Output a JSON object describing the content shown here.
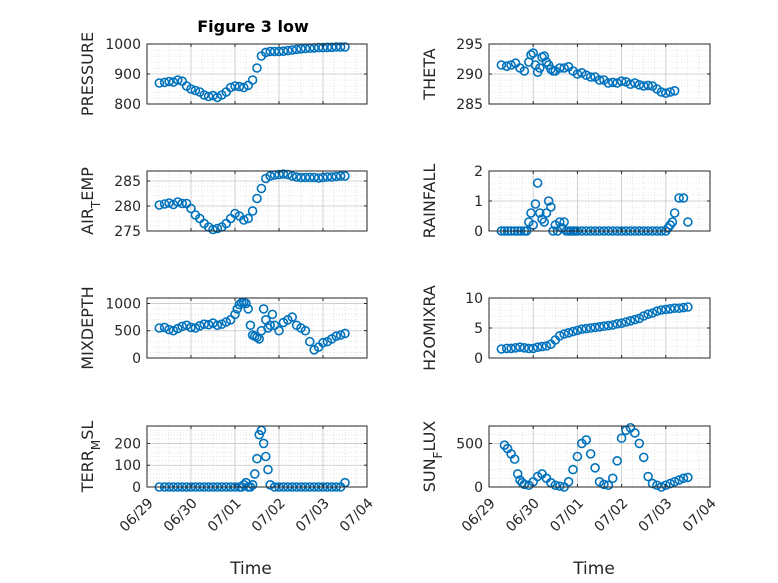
{
  "chart_data": [
    {
      "type": "scatter",
      "panel": "pressure",
      "title": "Figure 3 low",
      "ylabel": "PRESSURE",
      "xlabel": "",
      "ylim": [
        800,
        1000
      ],
      "yticks": [
        "800",
        "900",
        "1000"
      ],
      "xlim": [
        "06/29",
        "07/04"
      ],
      "grid": true,
      "marker": "circle",
      "color": "#0072BD",
      "x": [
        0.28,
        0.4,
        0.5,
        0.6,
        0.7,
        0.8,
        0.9,
        1.0,
        1.1,
        1.2,
        1.3,
        1.4,
        1.5,
        1.6,
        1.7,
        1.8,
        1.9,
        2.0,
        2.1,
        2.2,
        2.3,
        2.4,
        2.5,
        2.6,
        2.7,
        2.8,
        2.9,
        3.0,
        3.1,
        3.2,
        3.3,
        3.4,
        3.5,
        3.6,
        3.7,
        3.8,
        3.9,
        4.0,
        4.1,
        4.2,
        4.3,
        4.4,
        4.5
      ],
      "values": [
        870,
        872,
        875,
        873,
        880,
        876,
        860,
        850,
        845,
        840,
        830,
        825,
        828,
        822,
        830,
        840,
        855,
        860,
        858,
        855,
        862,
        880,
        920,
        960,
        972,
        975,
        975,
        975,
        976,
        978,
        980,
        982,
        984,
        985,
        986,
        987,
        988,
        988,
        989,
        989,
        990,
        990,
        990
      ]
    },
    {
      "type": "scatter",
      "panel": "theta",
      "ylabel": "THETA",
      "ylim": [
        285,
        295
      ],
      "yticks": [
        "285",
        "290",
        "295"
      ],
      "xlim": [
        "06/29",
        "07/04"
      ],
      "grid": true,
      "marker": "circle",
      "color": "#0072BD",
      "x": [
        0.28,
        0.4,
        0.5,
        0.6,
        0.7,
        0.8,
        0.9,
        0.95,
        1.0,
        1.05,
        1.1,
        1.15,
        1.2,
        1.25,
        1.3,
        1.35,
        1.4,
        1.45,
        1.5,
        1.6,
        1.7,
        1.8,
        1.9,
        2.0,
        2.1,
        2.2,
        2.3,
        2.4,
        2.5,
        2.6,
        2.7,
        2.8,
        2.9,
        3.0,
        3.1,
        3.2,
        3.3,
        3.4,
        3.5,
        3.6,
        3.7,
        3.8,
        3.9,
        4.0,
        4.1,
        4.2
      ],
      "values": [
        291.5,
        291.3,
        291.5,
        291.8,
        291.0,
        290.5,
        292.0,
        293.2,
        293.5,
        291.5,
        290.3,
        291.0,
        292.8,
        293.0,
        292.0,
        291.5,
        290.8,
        290.5,
        290.5,
        291.0,
        291.0,
        291.2,
        290.5,
        290.0,
        290.2,
        289.8,
        289.5,
        289.5,
        289.0,
        289.0,
        288.5,
        288.6,
        288.5,
        288.8,
        288.7,
        288.3,
        288.5,
        288.2,
        288.0,
        288.1,
        288.0,
        287.5,
        287.0,
        286.8,
        287.0,
        287.2
      ]
    },
    {
      "type": "scatter",
      "panel": "air_temp",
      "ylabel": "AIR_TEMP",
      "ylim": [
        275,
        287
      ],
      "yticks": [
        "275",
        "280",
        "285"
      ],
      "xlim": [
        "06/29",
        "07/04"
      ],
      "grid": true,
      "marker": "circle",
      "color": "#0072BD",
      "x": [
        0.28,
        0.4,
        0.5,
        0.6,
        0.7,
        0.8,
        0.9,
        1.0,
        1.1,
        1.2,
        1.3,
        1.4,
        1.5,
        1.6,
        1.7,
        1.8,
        1.9,
        2.0,
        2.1,
        2.2,
        2.3,
        2.4,
        2.5,
        2.6,
        2.7,
        2.8,
        2.9,
        3.0,
        3.1,
        3.2,
        3.3,
        3.4,
        3.5,
        3.6,
        3.7,
        3.8,
        3.9,
        4.0,
        4.1,
        4.2,
        4.3,
        4.4,
        4.5
      ],
      "values": [
        280.2,
        280.4,
        280.6,
        280.3,
        280.8,
        280.5,
        280.5,
        279.5,
        278.2,
        277.5,
        276.5,
        275.8,
        275.3,
        275.5,
        275.8,
        276.5,
        277.5,
        278.5,
        278.0,
        277.2,
        277.5,
        279.0,
        281.5,
        283.5,
        285.5,
        286.0,
        286.2,
        286.3,
        286.4,
        286.3,
        286.0,
        285.8,
        285.7,
        285.7,
        285.7,
        285.7,
        285.6,
        285.7,
        285.8,
        285.8,
        285.9,
        286.0,
        286.0
      ]
    },
    {
      "type": "scatter",
      "panel": "rainfall",
      "ylabel": "RAINFALL",
      "ylim": [
        0,
        2
      ],
      "yticks": [
        "0",
        "1",
        "2"
      ],
      "xlim": [
        "06/29",
        "07/04"
      ],
      "grid": true,
      "marker": "circle",
      "color": "#0072BD",
      "x": [
        0.28,
        0.35,
        0.42,
        0.5,
        0.58,
        0.65,
        0.72,
        0.8,
        0.85,
        0.9,
        0.95,
        1.0,
        1.05,
        1.1,
        1.15,
        1.2,
        1.25,
        1.3,
        1.35,
        1.4,
        1.45,
        1.5,
        1.55,
        1.6,
        1.65,
        1.7,
        1.75,
        1.8,
        1.85,
        1.9,
        1.95,
        2.0,
        2.1,
        2.2,
        2.3,
        2.4,
        2.5,
        2.6,
        2.7,
        2.8,
        2.9,
        3.0,
        3.1,
        3.2,
        3.3,
        3.4,
        3.5,
        3.6,
        3.7,
        3.8,
        3.9,
        4.0,
        4.05,
        4.1,
        4.15,
        4.2,
        4.3,
        4.4,
        4.5
      ],
      "values": [
        0,
        0,
        0,
        0,
        0,
        0,
        0,
        0,
        0,
        0.3,
        0.6,
        0.2,
        0.9,
        1.6,
        0.6,
        0.4,
        0.3,
        0.6,
        1.0,
        0.8,
        0,
        0.2,
        0,
        0.3,
        0.1,
        0.3,
        0,
        0,
        0,
        0,
        0,
        0,
        0,
        0,
        0,
        0,
        0,
        0,
        0,
        0,
        0,
        0,
        0,
        0,
        0,
        0,
        0,
        0,
        0,
        0,
        0,
        0,
        0.1,
        0.2,
        0.3,
        0.6,
        1.1,
        1.1,
        0.3
      ]
    },
    {
      "type": "scatter",
      "panel": "mixdepth",
      "ylabel": "MIXDEPTH",
      "ylim": [
        0,
        1100
      ],
      "yticks": [
        "0",
        "500",
        "1000"
      ],
      "xlim": [
        "06/29",
        "07/04"
      ],
      "grid": true,
      "marker": "circle",
      "color": "#0072BD",
      "x": [
        0.28,
        0.4,
        0.5,
        0.6,
        0.7,
        0.8,
        0.9,
        1.0,
        1.1,
        1.2,
        1.3,
        1.4,
        1.5,
        1.6,
        1.7,
        1.8,
        1.9,
        2.0,
        2.05,
        2.1,
        2.15,
        2.2,
        2.25,
        2.3,
        2.35,
        2.4,
        2.45,
        2.5,
        2.55,
        2.6,
        2.65,
        2.7,
        2.75,
        2.8,
        2.85,
        2.9,
        3.0,
        3.1,
        3.2,
        3.3,
        3.4,
        3.5,
        3.6,
        3.7,
        3.8,
        3.9,
        4.0,
        4.1,
        4.2,
        4.3,
        4.4,
        4.5
      ],
      "values": [
        550,
        560,
        520,
        500,
        540,
        580,
        600,
        560,
        550,
        590,
        620,
        610,
        640,
        600,
        620,
        660,
        700,
        800,
        900,
        980,
        1010,
        1020,
        1000,
        900,
        600,
        420,
        400,
        380,
        350,
        500,
        900,
        700,
        550,
        600,
        800,
        600,
        500,
        650,
        700,
        750,
        600,
        550,
        500,
        300,
        150,
        200,
        280,
        300,
        350,
        400,
        420,
        450
      ]
    },
    {
      "type": "scatter",
      "panel": "h2omixra",
      "ylabel": "H2OMIXRA",
      "ylim": [
        0,
        10
      ],
      "yticks": [
        "0",
        "5",
        "10"
      ],
      "xlim": [
        "06/29",
        "07/04"
      ],
      "grid": true,
      "marker": "circle",
      "color": "#0072BD",
      "x": [
        0.28,
        0.4,
        0.5,
        0.6,
        0.7,
        0.8,
        0.9,
        1.0,
        1.1,
        1.2,
        1.3,
        1.4,
        1.5,
        1.6,
        1.7,
        1.8,
        1.9,
        2.0,
        2.1,
        2.2,
        2.3,
        2.4,
        2.5,
        2.6,
        2.7,
        2.8,
        2.9,
        3.0,
        3.1,
        3.2,
        3.3,
        3.4,
        3.5,
        3.6,
        3.7,
        3.8,
        3.9,
        4.0,
        4.1,
        4.2,
        4.3,
        4.4,
        4.5
      ],
      "values": [
        1.5,
        1.6,
        1.6,
        1.7,
        1.8,
        1.7,
        1.6,
        1.6,
        1.8,
        1.9,
        2.0,
        2.3,
        3.0,
        3.7,
        4.0,
        4.2,
        4.4,
        4.6,
        4.8,
        4.9,
        5.0,
        5.1,
        5.2,
        5.3,
        5.4,
        5.5,
        5.7,
        5.8,
        6.0,
        6.2,
        6.4,
        6.6,
        7.0,
        7.3,
        7.5,
        7.8,
        8.0,
        8.1,
        8.2,
        8.3,
        8.3,
        8.4,
        8.5
      ]
    },
    {
      "type": "scatter",
      "panel": "terr_msl",
      "ylabel": "TERR_MSL",
      "ylim": [
        0,
        280
      ],
      "yticks": [
        "0",
        "100",
        "200"
      ],
      "xlim": [
        "06/29",
        "07/04"
      ],
      "xticks": [
        "06/29",
        "06/30",
        "07/01",
        "07/02",
        "07/03",
        "07/04"
      ],
      "xlabel": "Time",
      "grid": true,
      "marker": "circle",
      "color": "#0072BD",
      "x": [
        0.28,
        0.4,
        0.5,
        0.6,
        0.7,
        0.8,
        0.9,
        1.0,
        1.1,
        1.2,
        1.3,
        1.4,
        1.5,
        1.6,
        1.7,
        1.8,
        1.9,
        2.0,
        2.1,
        2.15,
        2.2,
        2.25,
        2.3,
        2.35,
        2.4,
        2.45,
        2.5,
        2.55,
        2.6,
        2.65,
        2.7,
        2.75,
        2.8,
        2.9,
        3.0,
        3.1,
        3.2,
        3.3,
        3.4,
        3.5,
        3.6,
        3.7,
        3.8,
        3.9,
        4.0,
        4.1,
        4.2,
        4.3,
        4.4,
        4.5
      ],
      "values": [
        0,
        0,
        0,
        0,
        0,
        0,
        0,
        0,
        0,
        0,
        0,
        0,
        0,
        0,
        0,
        0,
        0,
        0,
        0,
        0,
        10,
        20,
        0,
        0,
        10,
        60,
        130,
        240,
        260,
        200,
        140,
        80,
        10,
        0,
        0,
        0,
        0,
        0,
        0,
        0,
        0,
        0,
        0,
        0,
        0,
        0,
        0,
        0,
        0,
        20
      ]
    },
    {
      "type": "scatter",
      "panel": "sun_flux",
      "ylabel": "SUN_FLUX",
      "ylim": [
        0,
        700
      ],
      "yticks": [
        "0",
        "500"
      ],
      "xlim": [
        "06/29",
        "07/04"
      ],
      "xticks": [
        "06/29",
        "06/30",
        "07/01",
        "07/02",
        "07/03",
        "07/04"
      ],
      "xlabel": "Time",
      "grid": true,
      "marker": "circle",
      "color": "#0072BD",
      "x": [
        0.35,
        0.42,
        0.5,
        0.58,
        0.65,
        0.7,
        0.75,
        0.8,
        0.9,
        1.0,
        1.1,
        1.2,
        1.3,
        1.4,
        1.5,
        1.6,
        1.7,
        1.8,
        1.9,
        2.0,
        2.1,
        2.2,
        2.3,
        2.4,
        2.5,
        2.6,
        2.7,
        2.8,
        2.9,
        3.0,
        3.1,
        3.2,
        3.3,
        3.4,
        3.5,
        3.6,
        3.7,
        3.8,
        3.9,
        4.0,
        4.1,
        4.2,
        4.3,
        4.4,
        4.5
      ],
      "values": [
        480,
        440,
        380,
        320,
        150,
        80,
        50,
        30,
        20,
        60,
        120,
        150,
        100,
        50,
        20,
        10,
        0,
        60,
        200,
        350,
        500,
        540,
        380,
        220,
        60,
        30,
        20,
        100,
        300,
        560,
        650,
        680,
        620,
        500,
        340,
        120,
        40,
        20,
        0,
        20,
        40,
        60,
        80,
        100,
        110
      ]
    }
  ]
}
